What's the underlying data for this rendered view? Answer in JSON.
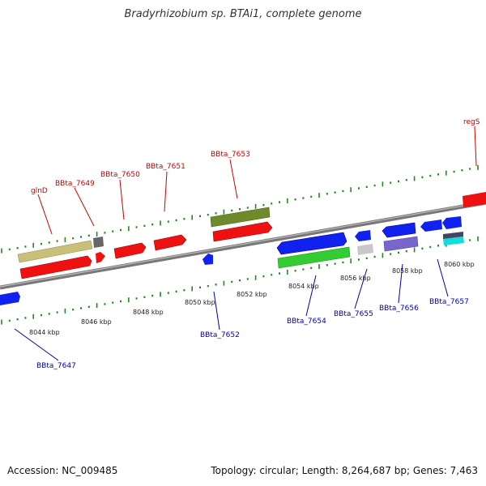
{
  "header": {
    "title": "Bradyrhizobium sp. BTAi1, complete genome"
  },
  "footer": {
    "accession": "Accession: NC_009485",
    "summary": "Topology: circular; Length: 8,264,687 bp; Genes: 7,463"
  },
  "genes_top": [
    {
      "label": "glnD",
      "color": "#ff0000"
    },
    {
      "label": "BBta_7649",
      "color": "#ff0000"
    },
    {
      "label": "BBta_7650",
      "color": "#ff0000"
    },
    {
      "label": "BBta_7651",
      "color": "#ff0000"
    },
    {
      "label": "BBta_7653",
      "color": "#ff0000"
    },
    {
      "label": "regS",
      "color": "#ff0000"
    }
  ],
  "genes_bottom": [
    {
      "label": "BBta_7647",
      "color": "#0000ff"
    },
    {
      "label": "BBta_7652",
      "color": "#0000ff"
    },
    {
      "label": "BBta_7654",
      "color": "#0000ff"
    },
    {
      "label": "BBta_7655",
      "color": "#0000ff"
    },
    {
      "label": "BBta_7656",
      "color": "#0000ff"
    },
    {
      "label": "BBta_7657",
      "color": "#0000ff"
    }
  ],
  "kbp_ticks": [
    "8044 kbp",
    "8046 kbp",
    "8048 kbp",
    "8050 kbp",
    "8052 kbp",
    "8054 kbp",
    "8056 kbp",
    "8058 kbp",
    "8060 kbp"
  ],
  "colors": {
    "forward_strand": "#ff0000",
    "reverse_strand": "#0000ff",
    "backbone": "#888888",
    "tick": "#228822"
  }
}
